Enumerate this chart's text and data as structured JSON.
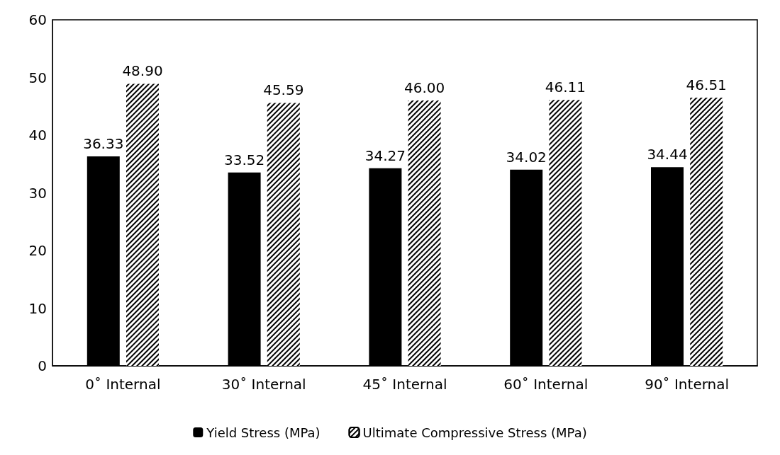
{
  "chart_data": {
    "type": "bar",
    "categories": [
      "0˚ Internal",
      "30˚ Internal",
      "45˚ Internal",
      "60˚ Internal",
      "90˚ Internal"
    ],
    "series": [
      {
        "name": "Yield Stress (MPa)",
        "color": "#000000",
        "values": [
          36.33,
          33.52,
          34.27,
          34.02,
          34.44
        ],
        "value_labels": [
          "36.33",
          "33.52",
          "34.27",
          "34.02",
          "34.44"
        ]
      },
      {
        "name": "Ultimate Compressive Stress (MPa)",
        "color": "#ffffff",
        "values": [
          48.9,
          45.59,
          46.0,
          46.11,
          46.51
        ],
        "value_labels": [
          "48.90",
          "45.59",
          "46.00",
          "46.11",
          "46.51"
        ]
      }
    ],
    "ylim": [
      0,
      60
    ],
    "yticks": [
      0,
      10,
      20,
      30,
      40,
      50,
      60
    ],
    "grid": false,
    "legend": "bottom"
  }
}
